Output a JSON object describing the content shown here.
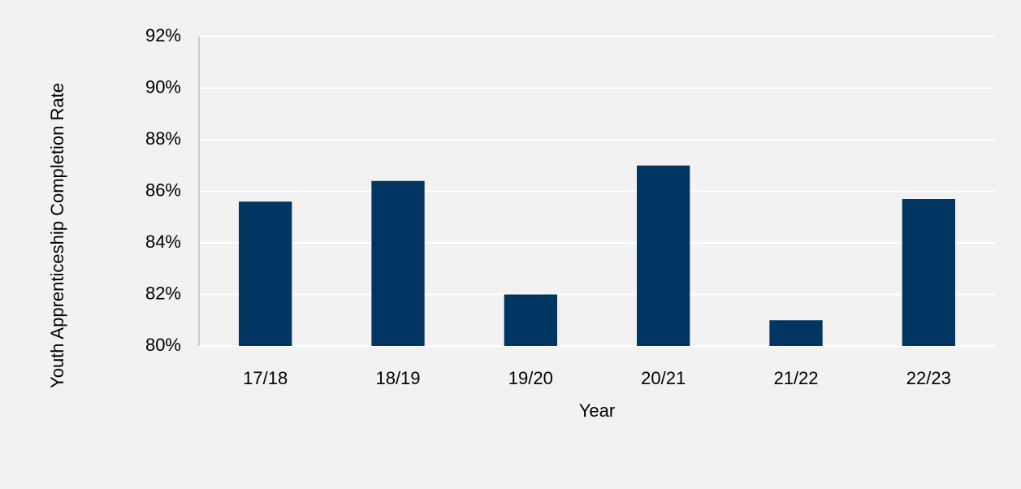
{
  "chart_data": {
    "type": "bar",
    "x_label": "Year",
    "y_label": "Youth Apprenticeship Completion Rate",
    "categories": [
      "17/18",
      "18/19",
      "19/20",
      "20/21",
      "21/22",
      "22/23"
    ],
    "values": [
      85.6,
      86.4,
      82.0,
      87.0,
      81.0,
      85.7
    ],
    "color": "#003661",
    "ylim": [
      80,
      92
    ],
    "yticks": [
      {
        "value": 80,
        "label": "80%"
      },
      {
        "value": 82,
        "label": "82%"
      },
      {
        "value": 84,
        "label": "84%"
      },
      {
        "value": 86,
        "label": "86%"
      },
      {
        "value": 88,
        "label": "88%"
      },
      {
        "value": 90,
        "label": "90%"
      },
      {
        "value": 92,
        "label": "92%"
      }
    ],
    "grid": true
  }
}
